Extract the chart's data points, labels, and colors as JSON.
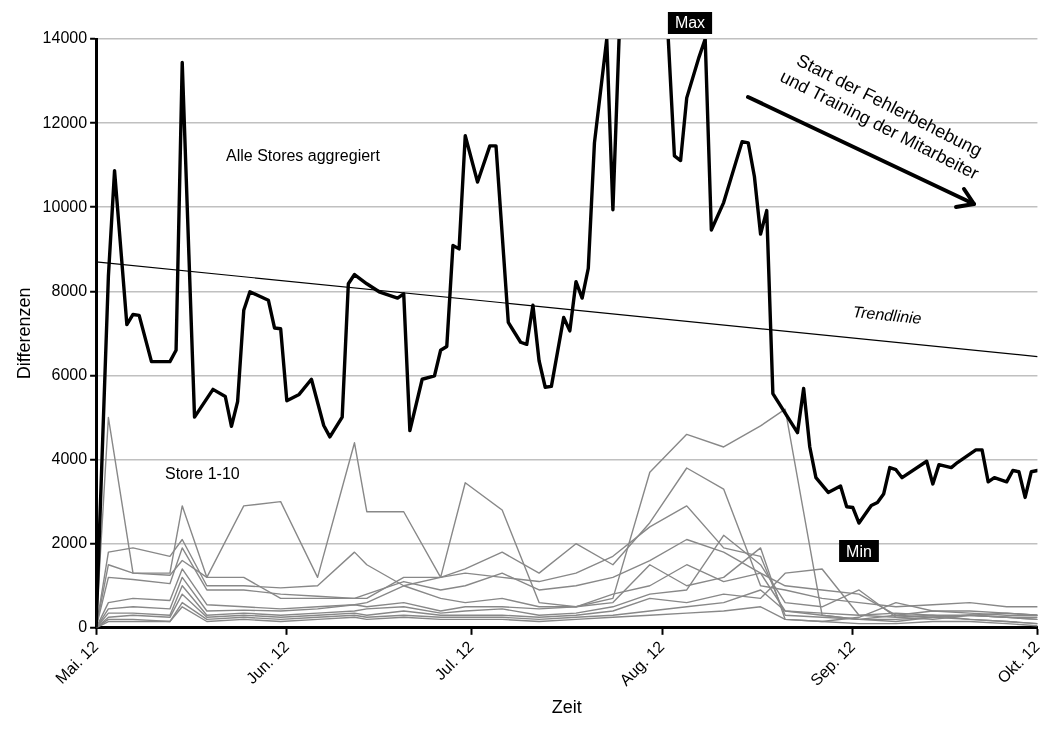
{
  "chart_data": {
    "type": "line",
    "xlabel": "Zeit",
    "ylabel": "Differenzen",
    "xlim": [
      "2012-05-01",
      "2012-10-01"
    ],
    "xticks": [
      {
        "value": "2012-05-01",
        "label": "Mai. 12"
      },
      {
        "value": "2012-06-01",
        "label": "Jun. 12"
      },
      {
        "value": "2012-07-01",
        "label": "Jul. 12"
      },
      {
        "value": "2012-08-01",
        "label": "Aug. 12"
      },
      {
        "value": "2012-09-01",
        "label": "Sep. 12"
      },
      {
        "value": "2012-10-01",
        "label": "Okt. 12"
      }
    ],
    "ylim": [
      0,
      14000
    ],
    "yticks": [
      0,
      2000,
      4000,
      6000,
      8000,
      10000,
      12000,
      14000
    ],
    "grid": "y",
    "legend": false,
    "marker": "none",
    "line_style": "solid",
    "x": [
      "2012-05-01",
      "2012-05-03",
      "2012-05-07",
      "2012-05-13",
      "2012-05-15",
      "2012-05-19",
      "2012-05-25",
      "2012-05-31",
      "2012-06-06",
      "2012-06-12",
      "2012-06-14",
      "2012-06-20",
      "2012-06-26",
      "2012-06-30",
      "2012-07-06",
      "2012-07-12",
      "2012-07-18",
      "2012-07-24",
      "2012-07-30",
      "2012-08-05",
      "2012-08-11",
      "2012-08-17",
      "2012-08-21",
      "2012-08-27",
      "2012-09-02",
      "2012-09-08",
      "2012-09-14",
      "2012-09-20",
      "2012-09-26",
      "2012-10-01"
    ],
    "series": [
      {
        "name": "Alle Stores aggregiert",
        "color": "#000000",
        "x": [
          "2012-05-01",
          "2012-05-03",
          "2012-05-04",
          "2012-05-06",
          "2012-05-07",
          "2012-05-08",
          "2012-05-10",
          "2012-05-13",
          "2012-05-14",
          "2012-05-15",
          "2012-05-17",
          "2012-05-20",
          "2012-05-22",
          "2012-05-23",
          "2012-05-24",
          "2012-05-25",
          "2012-05-26",
          "2012-05-29",
          "2012-05-30",
          "2012-05-31",
          "2012-06-01",
          "2012-06-03",
          "2012-06-05",
          "2012-06-07",
          "2012-06-08",
          "2012-06-10",
          "2012-06-11",
          "2012-06-12",
          "2012-06-14",
          "2012-06-16",
          "2012-06-19",
          "2012-06-20",
          "2012-06-21",
          "2012-06-23",
          "2012-06-25",
          "2012-06-26",
          "2012-06-27",
          "2012-06-28",
          "2012-06-29",
          "2012-06-30",
          "2012-07-02",
          "2012-07-04",
          "2012-07-05",
          "2012-07-07",
          "2012-07-09",
          "2012-07-10",
          "2012-07-11",
          "2012-07-12",
          "2012-07-13",
          "2012-07-14",
          "2012-07-16",
          "2012-07-17",
          "2012-07-18",
          "2012-07-19",
          "2012-07-20",
          "2012-07-21",
          "2012-07-23",
          "2012-07-24",
          "2012-07-25",
          "2012-07-29",
          "2012-08-02",
          "2012-08-03",
          "2012-08-04",
          "2012-08-05",
          "2012-08-07",
          "2012-08-08",
          "2012-08-09",
          "2012-08-11",
          "2012-08-14",
          "2012-08-15",
          "2012-08-16",
          "2012-08-17",
          "2012-08-18",
          "2012-08-19",
          "2012-08-23",
          "2012-08-24",
          "2012-08-25",
          "2012-08-26",
          "2012-08-28",
          "2012-08-30",
          "2012-08-31",
          "2012-09-01",
          "2012-09-02",
          "2012-09-04",
          "2012-09-05",
          "2012-09-06",
          "2012-09-07",
          "2012-09-08",
          "2012-09-09",
          "2012-09-13",
          "2012-09-14",
          "2012-09-15",
          "2012-09-17",
          "2012-09-18",
          "2012-09-21",
          "2012-09-22",
          "2012-09-23",
          "2012-09-24",
          "2012-09-26",
          "2012-09-27",
          "2012-09-28",
          "2012-09-29",
          "2012-09-30",
          "2012-10-01"
        ],
        "values": [
          0,
          8360,
          10870,
          7210,
          7450,
          7430,
          6330,
          6330,
          6600,
          13440,
          5010,
          5670,
          5500,
          4790,
          5380,
          7550,
          7990,
          7790,
          7130,
          7110,
          5400,
          5550,
          5910,
          4810,
          4540,
          5010,
          8180,
          8400,
          8180,
          7990,
          7840,
          7940,
          4690,
          5910,
          5990,
          6600,
          6690,
          9090,
          9010,
          11700,
          10600,
          11460,
          11460,
          7260,
          6790,
          6740,
          7670,
          6350,
          5720,
          5740,
          7380,
          7060,
          8230,
          7840,
          8550,
          11530,
          14000,
          9940,
          14000,
          null,
          14000,
          11220,
          11110,
          12600,
          13570,
          14000,
          9460,
          10110,
          11560,
          11530,
          10730,
          9360,
          9920,
          5570,
          4640,
          5690,
          4300,
          3570,
          3220,
          3370,
          2880,
          2860,
          2490,
          2910,
          2980,
          3180,
          3810,
          3760,
          3570,
          3960,
          3420,
          3880,
          3810,
          3930,
          4230,
          4230,
          3470,
          3570,
          3470,
          3740,
          3710,
          3100,
          3710,
          3740
        ]
      },
      {
        "name": "Trendlinie",
        "color": "#000000",
        "x": [
          "2012-05-01",
          "2012-10-01"
        ],
        "values": [
          8700,
          6450
        ]
      },
      {
        "color": "#888888",
        "values": [
          0,
          5000,
          1300,
          1300,
          2900,
          1200,
          2900,
          3000,
          1200,
          4400,
          2760,
          2760,
          1200,
          3450,
          2800,
          600,
          500,
          700,
          3700,
          4600,
          4300,
          4800,
          5200,
          300,
          200,
          150,
          250,
          300,
          350,
          300
        ]
      },
      {
        "color": "#888888",
        "values": [
          0,
          1800,
          1900,
          1700,
          2100,
          1000,
          1000,
          950,
          1000,
          1800,
          1500,
          1000,
          1200,
          1400,
          1800,
          1300,
          2000,
          1500,
          2500,
          3800,
          3300,
          1000,
          900,
          700,
          600,
          500,
          550,
          600,
          500,
          500
        ]
      },
      {
        "color": "#888888",
        "values": [
          0,
          1500,
          1300,
          1250,
          1600,
          1200,
          1200,
          700,
          700,
          700,
          700,
          1200,
          1200,
          1300,
          1200,
          1100,
          1300,
          1700,
          2400,
          2900,
          1900,
          1700,
          300,
          250,
          200,
          300,
          250,
          300,
          250,
          250
        ]
      },
      {
        "color": "#888888",
        "values": [
          0,
          1200,
          1150,
          1050,
          1900,
          900,
          900,
          800,
          750,
          700,
          800,
          1100,
          900,
          1000,
          1300,
          900,
          1000,
          1200,
          1600,
          2100,
          1800,
          1300,
          1000,
          900,
          800,
          300,
          400,
          350,
          300,
          300
        ]
      },
      {
        "color": "#888888",
        "values": [
          0,
          600,
          700,
          650,
          1400,
          550,
          500,
          450,
          500,
          550,
          600,
          1000,
          700,
          600,
          700,
          500,
          500,
          800,
          1000,
          1500,
          1100,
          1300,
          400,
          350,
          300,
          350,
          300,
          300,
          250,
          200
        ]
      },
      {
        "color": "#888888",
        "values": [
          0,
          450,
          500,
          450,
          1200,
          400,
          420,
          400,
          450,
          550,
          500,
          600,
          400,
          500,
          500,
          450,
          500,
          600,
          1500,
          1000,
          1200,
          1900,
          200,
          150,
          250,
          600,
          400,
          400,
          350,
          300
        ]
      },
      {
        "color": "#888888",
        "values": [
          0,
          350,
          350,
          300,
          1000,
          300,
          350,
          300,
          350,
          400,
          450,
          500,
          350,
          400,
          450,
          300,
          350,
          500,
          800,
          900,
          2200,
          1500,
          600,
          500,
          900,
          250,
          200,
          300,
          250,
          200
        ]
      },
      {
        "color": "#888888",
        "values": [
          0,
          250,
          300,
          250,
          800,
          250,
          300,
          250,
          300,
          350,
          300,
          400,
          300,
          300,
          300,
          250,
          300,
          400,
          700,
          600,
          800,
          700,
          1300,
          1400,
          300,
          250,
          300,
          200,
          150,
          100
        ]
      },
      {
        "color": "#888888",
        "values": [
          0,
          200,
          200,
          150,
          600,
          200,
          250,
          200,
          250,
          300,
          250,
          300,
          250,
          250,
          250,
          200,
          250,
          300,
          400,
          500,
          600,
          900,
          400,
          300,
          200,
          200,
          250,
          200,
          150,
          100
        ]
      },
      {
        "color": "#888888",
        "values": [
          0,
          150,
          150,
          150,
          500,
          150,
          200,
          150,
          200,
          250,
          200,
          250,
          200,
          200,
          200,
          150,
          200,
          250,
          300,
          350,
          400,
          500,
          200,
          150,
          100,
          100,
          150,
          150,
          100,
          50
        ]
      }
    ],
    "annotations": [
      "Store 1-10",
      "Max",
      "Start der Fehlerbehebung\nund Training der Mitarbeiter",
      {
        "text": "Min",
        "x": "2012-09-02",
        "y": 2490
      }
    ]
  }
}
